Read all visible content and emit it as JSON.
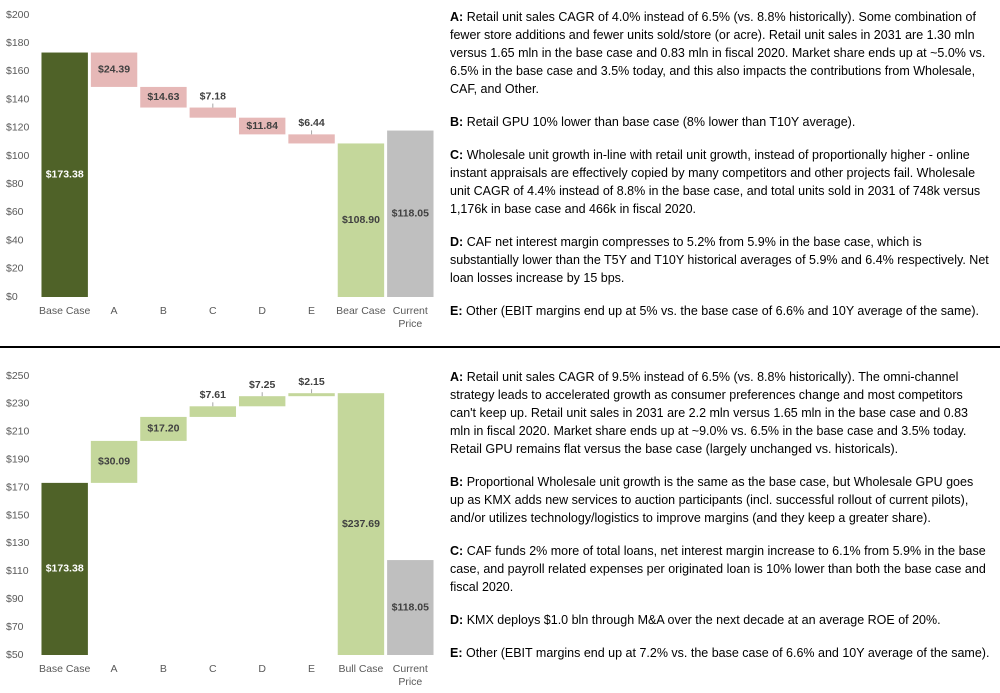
{
  "chart_data": [
    {
      "type": "waterfall",
      "categories": [
        "Base Case",
        "A",
        "B",
        "C",
        "D",
        "E",
        "Bear Case",
        "Current Price"
      ],
      "values": [
        173.38,
        -24.39,
        -14.63,
        -7.18,
        -11.84,
        -6.44,
        108.9,
        118.05
      ],
      "value_labels": [
        "$173.38",
        "$24.39",
        "$14.63",
        "$7.18",
        "$11.84",
        "$6.44",
        "$108.90",
        "$118.05"
      ],
      "measure": [
        "absolute",
        "relative",
        "relative",
        "relative",
        "relative",
        "relative",
        "absolute",
        "absolute"
      ],
      "colors": [
        "#4f6228",
        "#e6b8b7",
        "#e6b8b7",
        "#e6b8b7",
        "#e6b8b7",
        "#e6b8b7",
        "#c4d79b",
        "#bfbfbf"
      ],
      "ylim": [
        0,
        200
      ],
      "yticks": [
        {
          "value": 0,
          "label": "$0"
        },
        {
          "value": 20,
          "label": "$20"
        },
        {
          "value": 40,
          "label": "$40"
        },
        {
          "value": 60,
          "label": "$60"
        },
        {
          "value": 80,
          "label": "$80"
        },
        {
          "value": 100,
          "label": "$100"
        },
        {
          "value": 120,
          "label": "$120"
        },
        {
          "value": 140,
          "label": "$140"
        },
        {
          "value": 160,
          "label": "$160"
        },
        {
          "value": 180,
          "label": "$180"
        },
        {
          "value": 200,
          "label": "$200"
        }
      ],
      "grid": false,
      "notes": [
        {
          "label": "A:",
          "text": "Retail unit sales CAGR of 4.0% instead of 6.5% (vs. 8.8% historically). Some combination of fewer store additions and fewer units sold/store (or acre). Retail unit sales in 2031 are 1.30 mln versus 1.65 mln in the base case and 0.83 mln in fiscal 2020. Market share ends up at ~5.0% vs. 6.5% in the base case and 3.5% today, and this also impacts the contributions from Wholesale, CAF, and Other."
        },
        {
          "label": "B:",
          "text": "Retail GPU 10% lower than base case (8% lower than T10Y average)."
        },
        {
          "label": "C:",
          "text": "Wholesale unit growth in-line with retail unit growth, instead of proportionally higher - online instant appraisals are effectively copied by many competitors and other projects fail. Wholesale unit CAGR of 4.4% instead of 8.8% in the base case, and total units sold in 2031 of 748k versus 1,176k in base case and 466k in fiscal 2020."
        },
        {
          "label": "D:",
          "text": "CAF net interest margin compresses to 5.2% from 5.9% in the base case, which is substantially lower than the T5Y and T10Y historical averages of 5.9% and 6.4% respectively. Net loan losses increase by 15 bps."
        },
        {
          "label": "E:",
          "text": "Other (EBIT margins end up at 5% vs. the base case of 6.6% and 10Y average of the same)."
        }
      ]
    },
    {
      "type": "waterfall",
      "categories": [
        "Base Case",
        "A",
        "B",
        "C",
        "D",
        "E",
        "Bull Case",
        "Current Price"
      ],
      "values": [
        173.38,
        30.09,
        17.2,
        7.61,
        7.25,
        2.15,
        237.69,
        118.05
      ],
      "value_labels": [
        "$173.38",
        "$30.09",
        "$17.20",
        "$7.61",
        "$7.25",
        "$2.15",
        "$237.69",
        "$118.05"
      ],
      "measure": [
        "absolute",
        "relative",
        "relative",
        "relative",
        "relative",
        "relative",
        "absolute",
        "absolute"
      ],
      "colors": [
        "#4f6228",
        "#c4d79b",
        "#c4d79b",
        "#c4d79b",
        "#c4d79b",
        "#c4d79b",
        "#c4d79b",
        "#bfbfbf"
      ],
      "ylim": [
        50,
        250
      ],
      "yticks": [
        {
          "value": 50,
          "label": "$50"
        },
        {
          "value": 70,
          "label": "$70"
        },
        {
          "value": 90,
          "label": "$90"
        },
        {
          "value": 110,
          "label": "$110"
        },
        {
          "value": 130,
          "label": "$130"
        },
        {
          "value": 150,
          "label": "$150"
        },
        {
          "value": 170,
          "label": "$170"
        },
        {
          "value": 190,
          "label": "$190"
        },
        {
          "value": 210,
          "label": "$210"
        },
        {
          "value": 230,
          "label": "$230"
        },
        {
          "value": 250,
          "label": "$250"
        }
      ],
      "grid": false,
      "notes": [
        {
          "label": "A:",
          "text": "Retail unit sales CAGR of 9.5% instead of 6.5% (vs. 8.8% historically). The omni-channel strategy leads to accelerated growth as consumer preferences change and most competitors can't keep up. Retail unit sales in 2031 are 2.2 mln versus 1.65 mln in the base case and 0.83 mln in fiscal 2020. Market share ends up at ~9.0% vs. 6.5% in the base case and 3.5% today. Retail GPU remains flat versus the base case (largely unchanged vs. historicals)."
        },
        {
          "label": "B:",
          "text": "Proportional Wholesale unit growth is the same as the base case, but Wholesale GPU goes up as KMX adds new services to auction participants (incl. successful rollout of current pilots), and/or utilizes technology/logistics to improve margins (and they keep a greater share)."
        },
        {
          "label": "C:",
          "text": "CAF funds 2% more of total loans, net interest margin increase to 6.1% from 5.9% in the base case, and payroll related expenses per originated loan is 10% lower than both the base case and fiscal 2020."
        },
        {
          "label": "D:",
          "text": "KMX deploys $1.0 bln through M&A over the next decade at an average ROE of 20%."
        },
        {
          "label": "E:",
          "text": "Other (EBIT margins end up at 7.2% vs. the base case of 6.6% and 10Y average of the same)."
        }
      ]
    }
  ]
}
